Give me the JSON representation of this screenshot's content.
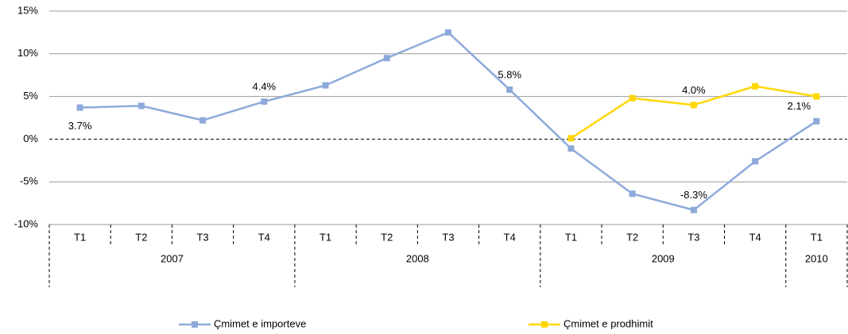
{
  "chart_data": {
    "type": "line",
    "categories": [
      "T1",
      "T2",
      "T3",
      "T4",
      "T1",
      "T2",
      "T3",
      "T4",
      "T1",
      "T2",
      "T3",
      "T4",
      "T1"
    ],
    "years": [
      "2007",
      null,
      null,
      null,
      "2008",
      null,
      null,
      null,
      "2009",
      null,
      null,
      null,
      "2010"
    ],
    "series": [
      {
        "name": "Çmimet e importeve",
        "color": "#8eaadb",
        "values": [
          3.7,
          3.9,
          2.2,
          4.4,
          6.3,
          9.5,
          12.5,
          5.8,
          -1.1,
          -6.4,
          -8.3,
          -2.6,
          2.1
        ],
        "value_labels": [
          "3.7%",
          null,
          null,
          "4.4%",
          null,
          null,
          null,
          "5.8%",
          null,
          null,
          "-8.3%",
          null,
          "2.1%"
        ]
      },
      {
        "name": "Çmimet e prodhimit",
        "color": "#ffd700",
        "values": [
          null,
          null,
          null,
          null,
          null,
          null,
          null,
          null,
          0.1,
          4.8,
          4.0,
          6.2,
          5.0
        ],
        "value_labels": [
          null,
          null,
          null,
          null,
          null,
          null,
          null,
          null,
          null,
          null,
          "4.0%",
          null,
          null
        ]
      }
    ],
    "ylim": [
      -10,
      15
    ],
    "yticks": [
      {
        "value": -10,
        "label": "-10%"
      },
      {
        "value": -5,
        "label": "-5%"
      },
      {
        "value": 0,
        "label": "0%"
      },
      {
        "value": 5,
        "label": "5%"
      },
      {
        "value": 10,
        "label": "10%"
      },
      {
        "value": 15,
        "label": "15%"
      }
    ],
    "grid": true
  }
}
